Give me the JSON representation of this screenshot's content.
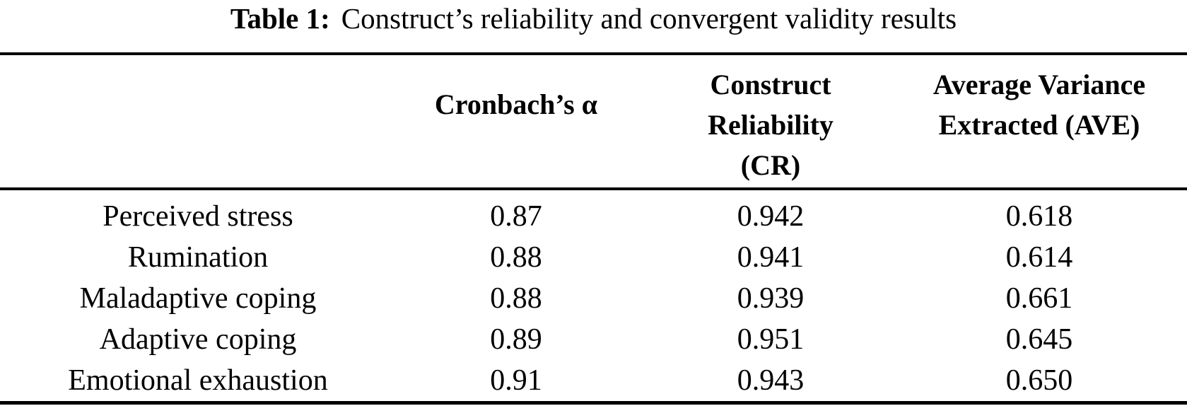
{
  "caption": {
    "label": "Table 1:",
    "text": "Construct’s reliability and convergent validity results"
  },
  "table": {
    "header": {
      "construct_col": "",
      "cronbach": "Cronbach’s α",
      "cr_lines": [
        "Construct",
        "Reliability",
        "(CR)"
      ],
      "ave_lines": [
        "Average Variance",
        "Extracted (AVE)"
      ]
    },
    "rows": [
      {
        "construct": "Perceived stress",
        "alpha": "0.87",
        "cr": "0.942",
        "ave": "0.618"
      },
      {
        "construct": "Rumination",
        "alpha": "0.88",
        "cr": "0.941",
        "ave": "0.614"
      },
      {
        "construct": "Maladaptive coping",
        "alpha": "0.88",
        "cr": "0.939",
        "ave": "0.661"
      },
      {
        "construct": "Adaptive coping",
        "alpha": "0.89",
        "cr": "0.951",
        "ave": "0.645"
      },
      {
        "construct": "Emotional exhaustion",
        "alpha": "0.91",
        "cr": "0.943",
        "ave": "0.650"
      }
    ],
    "colors": {
      "text": "#000000",
      "background": "#ffffff",
      "rule": "#000000"
    }
  }
}
